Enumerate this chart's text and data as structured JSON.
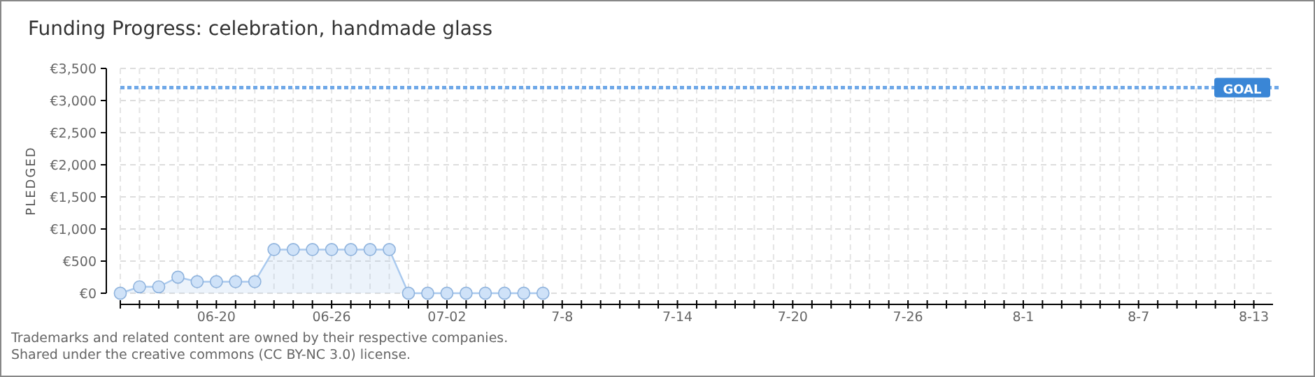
{
  "chart_data": {
    "type": "area",
    "title": "Funding Progress: celebration, handmade glass",
    "ylabel": "PLEDGED",
    "x": [
      "--06-15",
      "--06-16",
      "--06-17",
      "--06-18",
      "--06-19",
      "--06-20",
      "--06-21",
      "--06-22",
      "--06-23",
      "--06-24",
      "--06-25",
      "--06-26",
      "--06-27",
      "--06-28",
      "--06-29",
      "--06-30",
      "--07-01",
      "--07-02",
      "--07-03",
      "--07-04",
      "--07-05",
      "--07-06",
      "--07-07"
    ],
    "series": [
      {
        "color": "#a9c9ee",
        "values": [
          0,
          100,
          100,
          250,
          180,
          180,
          180,
          180,
          680,
          680,
          680,
          680,
          680,
          680,
          680,
          0,
          0,
          0,
          0,
          0,
          0,
          0,
          0
        ]
      }
    ],
    "marker": "circle",
    "grid": true,
    "xlim": [
      "--06-15",
      "--08-14"
    ],
    "xticks": [
      {
        "value": "--06-15",
        "label": null
      },
      {
        "value": "--06-16",
        "label": null
      },
      {
        "value": "--06-17",
        "label": null
      },
      {
        "value": "--06-18",
        "label": null
      },
      {
        "value": "--06-19",
        "label": null
      },
      {
        "value": "--06-20",
        "label": "06-20"
      },
      {
        "value": "--06-21",
        "label": null
      },
      {
        "value": "--06-22",
        "label": null
      },
      {
        "value": "--06-23",
        "label": null
      },
      {
        "value": "--06-24",
        "label": null
      },
      {
        "value": "--06-25",
        "label": null
      },
      {
        "value": "--06-26",
        "label": "06-26"
      },
      {
        "value": "--06-27",
        "label": null
      },
      {
        "value": "--06-28",
        "label": null
      },
      {
        "value": "--06-29",
        "label": null
      },
      {
        "value": "--06-30",
        "label": null
      },
      {
        "value": "--07-01",
        "label": null
      },
      {
        "value": "--07-02",
        "label": "07-02"
      },
      {
        "value": "--07-03",
        "label": null
      },
      {
        "value": "--07-04",
        "label": null
      },
      {
        "value": "--07-05",
        "label": null
      },
      {
        "value": "--07-06",
        "label": null
      },
      {
        "value": "--07-07",
        "label": null
      },
      {
        "value": "--07-08",
        "label": "7-8"
      },
      {
        "value": "--07-09",
        "label": null
      },
      {
        "value": "--07-10",
        "label": null
      },
      {
        "value": "--07-11",
        "label": null
      },
      {
        "value": "--07-12",
        "label": null
      },
      {
        "value": "--07-13",
        "label": null
      },
      {
        "value": "--07-14",
        "label": "7-14"
      },
      {
        "value": "--07-15",
        "label": null
      },
      {
        "value": "--07-16",
        "label": null
      },
      {
        "value": "--07-17",
        "label": null
      },
      {
        "value": "--07-18",
        "label": null
      },
      {
        "value": "--07-19",
        "label": null
      },
      {
        "value": "--07-20",
        "label": "7-20"
      },
      {
        "value": "--07-21",
        "label": null
      },
      {
        "value": "--07-22",
        "label": null
      },
      {
        "value": "--07-23",
        "label": null
      },
      {
        "value": "--07-24",
        "label": null
      },
      {
        "value": "--07-25",
        "label": null
      },
      {
        "value": "--07-26",
        "label": "7-26"
      },
      {
        "value": "--07-27",
        "label": null
      },
      {
        "value": "--07-28",
        "label": null
      },
      {
        "value": "--07-29",
        "label": null
      },
      {
        "value": "--07-30",
        "label": null
      },
      {
        "value": "--07-31",
        "label": null
      },
      {
        "value": "--08-01",
        "label": "8-1"
      },
      {
        "value": "--08-02",
        "label": null
      },
      {
        "value": "--08-03",
        "label": null
      },
      {
        "value": "--08-04",
        "label": null
      },
      {
        "value": "--08-05",
        "label": null
      },
      {
        "value": "--08-06",
        "label": null
      },
      {
        "value": "--08-07",
        "label": "8-7"
      },
      {
        "value": "--08-08",
        "label": null
      },
      {
        "value": "--08-09",
        "label": null
      },
      {
        "value": "--08-10",
        "label": null
      },
      {
        "value": "--08-11",
        "label": null
      },
      {
        "value": "--08-12",
        "label": null
      },
      {
        "value": "--08-13",
        "label": "8-13"
      }
    ],
    "ylim": [
      0,
      3500
    ],
    "yticks": [
      {
        "value": 0,
        "label": "€0"
      },
      {
        "value": 500,
        "label": "€500"
      },
      {
        "value": 1000,
        "label": "€1,000"
      },
      {
        "value": 1500,
        "label": "€1,500"
      },
      {
        "value": 2000,
        "label": "€2,000"
      },
      {
        "value": 2500,
        "label": "€2,500"
      },
      {
        "value": 3000,
        "label": "€3,000"
      },
      {
        "value": 3500,
        "label": "€3,500"
      }
    ],
    "ref_lines": [
      {
        "axis": "y",
        "value": 3200,
        "label": "GOAL",
        "color": "#6fa8e8",
        "line_style": "dotted"
      }
    ],
    "annotations": [
      "Trademarks and related content are owned by their respective companies.",
      "Shared under the creative commons (CC BY-NC 3.0) license."
    ]
  }
}
